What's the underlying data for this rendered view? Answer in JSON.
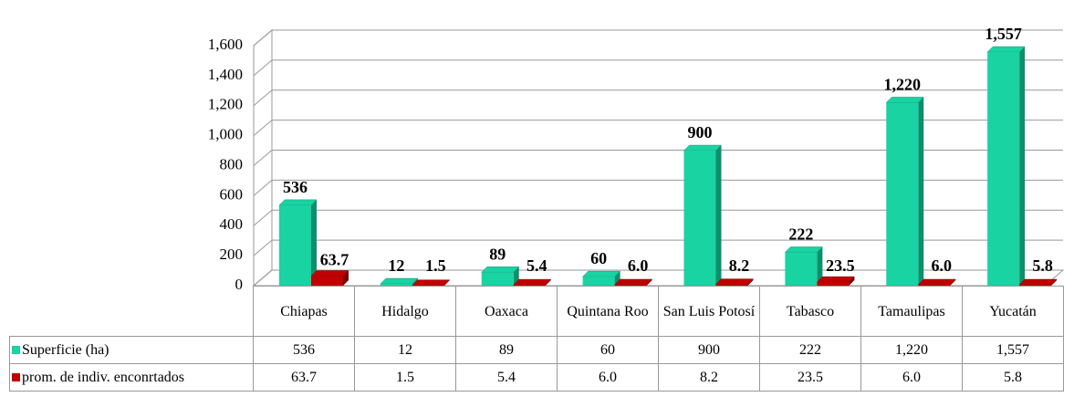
{
  "chart_data": {
    "type": "bar3d",
    "categories": [
      "Chiapas",
      "Hidalgo",
      "Oaxaca",
      "Quintana Roo",
      "San Luis Potosí",
      "Tabasco",
      "Tamaulipas",
      "Yucatán"
    ],
    "series": [
      {
        "name": "Superficie (ha)",
        "color": "#19d3a2",
        "side_color": "#0e8f6c",
        "values": [
          536,
          12,
          89,
          60,
          900,
          222,
          1220,
          1557
        ],
        "value_labels": [
          "536",
          "12",
          "89",
          "60",
          "900",
          "222",
          "1,220",
          "1,557"
        ]
      },
      {
        "name": "prom. de indiv. enconrtados",
        "color": "#c00000",
        "side_color": "#7a0000",
        "values": [
          63.7,
          1.5,
          5.4,
          6.0,
          8.2,
          23.5,
          6.0,
          5.8
        ],
        "value_labels": [
          "63.7",
          "1.5",
          "5.4",
          "6.0",
          "8.2",
          "23.5",
          "6.0",
          "5.8"
        ]
      }
    ],
    "ylim": [
      0,
      1600
    ],
    "yticks": [
      0,
      200,
      400,
      600,
      800,
      {
        "value": 1000,
        "label": "1,000"
      },
      {
        "value": 1200,
        "label": "1,200"
      },
      {
        "value": 1400,
        "label": "1,400"
      },
      {
        "value": 1600,
        "label": "1,600"
      }
    ],
    "grid": true
  }
}
